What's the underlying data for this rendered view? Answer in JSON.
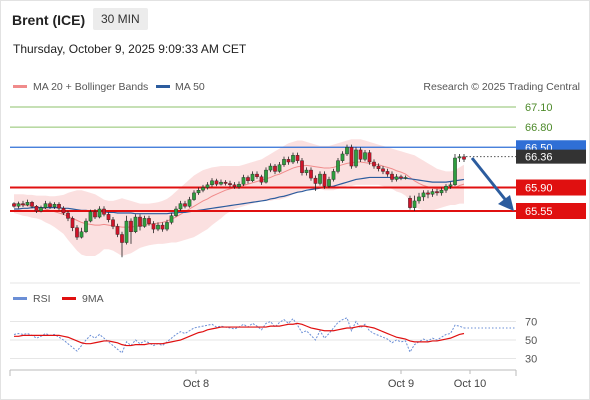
{
  "header": {
    "instrument": "Brent (ICE)",
    "timeframe": "30 MIN",
    "datetime": "Thursday, October 9, 2025 9:09:33 AM CET"
  },
  "legend": {
    "bollinger": "MA 20 + Bollinger Bands",
    "ma50": "MA 50",
    "credit": "Research © 2025 Trading Central",
    "rsi": "RSI",
    "rsi_ma": "9MA"
  },
  "colors": {
    "candle_up": "#2e9e3e",
    "candle_down": "#d0142a",
    "bollinger": "#f08b8b",
    "bollinger_band": "#f9d6d6",
    "ma50": "#2c5c9e",
    "resistance": "#8dc26b",
    "pivot": "#2f6fd6",
    "support": "#e01010",
    "current_price": "#333333",
    "rsi": "#6b8fd6",
    "rsi_ma": "#e01010"
  },
  "chart_data": [
    {
      "type": "candlestick",
      "x_ticks": [
        "Oct 8",
        "Oct 9",
        "Oct 10"
      ],
      "y_range": [
        64.7,
        67.4
      ],
      "levels": [
        {
          "value": 67.1,
          "label": "67.10",
          "kind": "resistance"
        },
        {
          "value": 66.8,
          "label": "66.80",
          "kind": "resistance"
        },
        {
          "value": 66.5,
          "label": "66.50",
          "kind": "pivot"
        },
        {
          "value": 66.36,
          "label": "66.36",
          "kind": "current_price"
        },
        {
          "value": 65.9,
          "label": "65.90",
          "kind": "support"
        },
        {
          "value": 65.55,
          "label": "65.55",
          "kind": "support"
        }
      ],
      "candles": [
        [
          65.66,
          65.62,
          65.68,
          65.6
        ],
        [
          65.62,
          65.66,
          65.69,
          65.59
        ],
        [
          65.66,
          65.64,
          65.7,
          65.61
        ],
        [
          65.64,
          65.68,
          65.72,
          65.62
        ],
        [
          65.68,
          65.62,
          65.7,
          65.59
        ],
        [
          65.62,
          65.55,
          65.64,
          65.52
        ],
        [
          65.55,
          65.6,
          65.63,
          65.53
        ],
        [
          65.6,
          65.66,
          65.7,
          65.58
        ],
        [
          65.66,
          65.61,
          65.69,
          65.58
        ],
        [
          65.61,
          65.65,
          65.68,
          65.58
        ],
        [
          65.65,
          65.59,
          65.68,
          65.56
        ],
        [
          65.59,
          65.52,
          65.62,
          65.49
        ],
        [
          65.52,
          65.44,
          65.55,
          65.4
        ],
        [
          65.44,
          65.3,
          65.47,
          65.25
        ],
        [
          65.3,
          65.16,
          65.34,
          65.12
        ],
        [
          65.16,
          65.24,
          65.3,
          65.14
        ],
        [
          65.24,
          65.4,
          65.44,
          65.22
        ],
        [
          65.4,
          65.54,
          65.57,
          65.38
        ],
        [
          65.54,
          65.46,
          65.58,
          65.43
        ],
        [
          65.46,
          65.58,
          65.62,
          65.44
        ],
        [
          65.58,
          65.5,
          65.62,
          65.47
        ],
        [
          65.5,
          65.42,
          65.53,
          65.38
        ],
        [
          65.42,
          65.32,
          65.46,
          65.28
        ],
        [
          65.32,
          65.2,
          65.36,
          65.16
        ],
        [
          65.2,
          65.08,
          65.24,
          64.86
        ],
        [
          65.08,
          65.4,
          65.48,
          65.05
        ],
        [
          65.4,
          65.24,
          65.44,
          65.06
        ],
        [
          65.24,
          65.46,
          65.5,
          65.22
        ],
        [
          65.46,
          65.32,
          65.5,
          65.26
        ],
        [
          65.32,
          65.44,
          65.48,
          65.3
        ],
        [
          65.44,
          65.36,
          65.48,
          65.33
        ],
        [
          65.36,
          65.28,
          65.4,
          65.22
        ],
        [
          65.28,
          65.34,
          65.38,
          65.25
        ],
        [
          65.34,
          65.28,
          65.38,
          65.24
        ],
        [
          65.28,
          65.38,
          65.42,
          65.25
        ],
        [
          65.38,
          65.48,
          65.52,
          65.35
        ],
        [
          65.48,
          65.58,
          65.62,
          65.46
        ],
        [
          65.58,
          65.66,
          65.7,
          65.55
        ],
        [
          65.66,
          65.62,
          65.7,
          65.59
        ],
        [
          65.62,
          65.72,
          65.76,
          65.6
        ],
        [
          65.72,
          65.82,
          65.86,
          65.7
        ],
        [
          65.82,
          65.86,
          65.9,
          65.79
        ],
        [
          65.86,
          65.9,
          65.94,
          65.83
        ],
        [
          65.9,
          65.94,
          65.98,
          65.87
        ],
        [
          65.94,
          66.0,
          66.04,
          65.91
        ],
        [
          66.0,
          65.95,
          66.03,
          65.92
        ],
        [
          65.95,
          65.98,
          66.02,
          65.93
        ],
        [
          65.98,
          65.96,
          66.01,
          65.93
        ],
        [
          65.96,
          65.94,
          66.0,
          65.91
        ],
        [
          65.94,
          65.91,
          65.98,
          65.88
        ],
        [
          65.91,
          65.95,
          65.99,
          65.88
        ],
        [
          65.95,
          66.05,
          66.09,
          65.92
        ],
        [
          66.05,
          66.0,
          66.08,
          65.96
        ],
        [
          66.0,
          66.1,
          66.14,
          65.98
        ],
        [
          66.1,
          66.06,
          66.14,
          66.03
        ],
        [
          66.06,
          65.98,
          66.09,
          65.94
        ],
        [
          65.98,
          66.16,
          66.2,
          65.96
        ],
        [
          66.16,
          66.22,
          66.26,
          66.13
        ],
        [
          66.22,
          66.14,
          66.25,
          66.1
        ],
        [
          66.14,
          66.24,
          66.28,
          66.12
        ],
        [
          66.24,
          66.32,
          66.36,
          66.21
        ],
        [
          66.32,
          66.28,
          66.36,
          66.24
        ],
        [
          66.28,
          66.38,
          66.42,
          66.25
        ],
        [
          66.38,
          66.3,
          66.42,
          66.26
        ],
        [
          66.3,
          66.12,
          66.34,
          66.08
        ],
        [
          66.12,
          66.16,
          66.2,
          66.08
        ],
        [
          66.16,
          66.04,
          66.2,
          66.0
        ],
        [
          66.04,
          65.96,
          66.08,
          65.85
        ],
        [
          65.96,
          66.1,
          66.14,
          65.93
        ],
        [
          66.1,
          65.92,
          66.14,
          65.88
        ],
        [
          65.92,
          66.02,
          66.06,
          65.89
        ],
        [
          66.02,
          66.14,
          66.18,
          65.99
        ],
        [
          66.14,
          66.3,
          66.34,
          66.11
        ],
        [
          66.3,
          66.4,
          66.44,
          66.27
        ],
        [
          66.4,
          66.5,
          66.54,
          66.37
        ],
        [
          66.5,
          66.22,
          66.54,
          66.18
        ],
        [
          66.22,
          66.46,
          66.5,
          66.19
        ],
        [
          66.46,
          66.32,
          66.5,
          66.28
        ],
        [
          66.32,
          66.42,
          66.46,
          66.29
        ],
        [
          66.42,
          66.28,
          66.46,
          66.24
        ],
        [
          66.28,
          66.22,
          66.32,
          66.18
        ],
        [
          66.22,
          66.18,
          66.26,
          66.14
        ],
        [
          66.18,
          66.14,
          66.22,
          66.1
        ],
        [
          66.14,
          66.1,
          66.18,
          66.06
        ],
        [
          66.1,
          66.02,
          66.14,
          65.98
        ],
        [
          66.02,
          66.06,
          66.1,
          65.99
        ],
        [
          66.06,
          66.04,
          66.09,
          66.01
        ],
        [
          66.04,
          66.05,
          66.08,
          66.02
        ],
        [
          65.74,
          65.6,
          65.78,
          65.57
        ],
        [
          65.6,
          65.7,
          65.78,
          65.55
        ],
        [
          65.7,
          65.76,
          65.82,
          65.66
        ],
        [
          65.76,
          65.82,
          65.86,
          65.7
        ],
        [
          65.82,
          65.8,
          65.86,
          65.74
        ],
        [
          65.8,
          65.84,
          65.88,
          65.76
        ],
        [
          65.84,
          65.82,
          65.88,
          65.78
        ],
        [
          65.82,
          65.86,
          65.9,
          65.78
        ],
        [
          65.86,
          65.92,
          65.95,
          65.82
        ],
        [
          65.92,
          65.94,
          65.98,
          65.88
        ],
        [
          65.94,
          66.34,
          66.4,
          65.92
        ],
        [
          66.34,
          66.36,
          66.4,
          66.28
        ],
        [
          66.36,
          66.32,
          66.4,
          66.28
        ]
      ],
      "ma20": [
        65.66,
        65.65,
        65.64,
        65.63,
        65.62,
        65.61,
        65.6,
        65.58,
        65.56,
        65.54,
        65.52,
        65.5,
        65.47,
        65.44,
        65.41,
        65.38,
        65.36,
        65.35,
        65.34,
        65.34,
        65.35,
        65.34,
        65.33,
        65.32,
        65.31,
        65.31,
        65.31,
        65.32,
        65.33,
        65.34,
        65.35,
        65.36,
        65.37,
        65.38,
        65.4,
        65.43,
        65.46,
        65.5,
        65.54,
        65.58,
        65.62,
        65.66,
        65.7,
        65.73,
        65.77,
        65.8,
        65.83,
        65.86,
        65.88,
        65.9,
        65.91,
        65.93,
        65.95,
        65.97,
        65.99,
        66.01,
        66.03,
        66.05,
        66.08,
        66.1,
        66.13,
        66.16,
        66.19,
        66.21,
        66.22,
        66.23,
        66.22,
        66.21,
        66.2,
        66.19,
        66.19,
        66.2,
        66.22,
        66.24,
        66.26,
        66.27,
        66.28,
        66.28,
        66.27,
        66.26,
        66.25,
        66.24,
        66.22,
        66.2,
        66.18,
        66.15,
        66.13,
        66.1,
        66.05,
        66.0,
        65.96,
        65.93,
        65.91,
        65.89,
        65.88,
        65.88,
        65.88,
        65.89,
        65.9,
        65.93,
        65.95
      ],
      "bb_upper": [
        65.8,
        65.8,
        65.8,
        65.79,
        65.79,
        65.78,
        65.78,
        65.78,
        65.77,
        65.77,
        65.78,
        65.79,
        65.82,
        65.84,
        65.86,
        65.86,
        65.84,
        65.82,
        65.8,
        65.76,
        65.72,
        65.7,
        65.7,
        65.72,
        65.74,
        65.72,
        65.7,
        65.68,
        65.66,
        65.66,
        65.66,
        65.67,
        65.68,
        65.7,
        65.73,
        65.78,
        65.84,
        65.9,
        65.96,
        66.02,
        66.08,
        66.12,
        66.16,
        66.18,
        66.2,
        66.21,
        66.22,
        66.22,
        66.22,
        66.22,
        66.22,
        66.24,
        66.26,
        66.28,
        66.3,
        66.32,
        66.36,
        66.4,
        66.44,
        66.48,
        66.52,
        66.56,
        66.58,
        66.6,
        66.6,
        66.58,
        66.56,
        66.54,
        66.52,
        66.52,
        66.52,
        66.54,
        66.56,
        66.58,
        66.6,
        66.62,
        66.62,
        66.62,
        66.6,
        66.58,
        66.56,
        66.54,
        66.52,
        66.5,
        66.48,
        66.46,
        66.44,
        66.42,
        66.4,
        66.38,
        66.34,
        66.3,
        66.26,
        66.22,
        66.18,
        66.16,
        66.14,
        66.14,
        66.16,
        66.2,
        66.24
      ],
      "bb_lower": [
        65.52,
        65.5,
        65.48,
        65.47,
        65.45,
        65.44,
        65.42,
        65.38,
        65.35,
        65.31,
        65.26,
        65.21,
        65.12,
        65.04,
        64.96,
        64.9,
        64.88,
        64.88,
        64.88,
        64.92,
        64.98,
        64.98,
        64.96,
        64.92,
        64.88,
        64.9,
        64.92,
        64.96,
        65.0,
        65.02,
        65.04,
        65.05,
        65.06,
        65.06,
        65.07,
        65.08,
        65.08,
        65.1,
        65.12,
        65.14,
        65.16,
        65.2,
        65.24,
        65.28,
        65.34,
        65.39,
        65.44,
        65.5,
        65.54,
        65.58,
        65.6,
        65.62,
        65.64,
        65.66,
        65.68,
        65.7,
        65.7,
        65.7,
        65.72,
        65.72,
        65.74,
        65.76,
        65.8,
        65.82,
        65.84,
        65.88,
        65.88,
        65.88,
        65.88,
        65.86,
        65.86,
        65.86,
        65.88,
        65.9,
        65.92,
        65.92,
        65.94,
        65.94,
        65.94,
        65.94,
        65.94,
        65.94,
        65.92,
        65.9,
        65.88,
        65.84,
        65.82,
        65.78,
        65.7,
        65.62,
        65.58,
        65.56,
        65.56,
        65.56,
        65.58,
        65.6,
        65.62,
        65.64,
        65.64,
        65.66,
        65.66
      ],
      "ma50": [
        65.58,
        65.58,
        65.59,
        65.59,
        65.6,
        65.6,
        65.6,
        65.6,
        65.6,
        65.6,
        65.6,
        65.59,
        65.59,
        65.58,
        65.57,
        65.56,
        65.56,
        65.55,
        65.55,
        65.54,
        65.54,
        65.53,
        65.53,
        65.52,
        65.52,
        65.52,
        65.52,
        65.51,
        65.51,
        65.51,
        65.51,
        65.51,
        65.51,
        65.51,
        65.51,
        65.52,
        65.52,
        65.53,
        65.53,
        65.54,
        65.55,
        65.56,
        65.57,
        65.58,
        65.59,
        65.6,
        65.61,
        65.62,
        65.63,
        65.64,
        65.65,
        65.66,
        65.67,
        65.68,
        65.69,
        65.7,
        65.71,
        65.73,
        65.74,
        65.76,
        65.77,
        65.79,
        65.81,
        65.83,
        65.84,
        65.86,
        65.87,
        65.88,
        65.89,
        65.9,
        65.91,
        65.92,
        65.94,
        65.96,
        65.98,
        66.0,
        66.02,
        66.03,
        66.04,
        66.05,
        66.05,
        66.05,
        66.05,
        66.05,
        66.05,
        66.04,
        66.04,
        66.04,
        66.03,
        66.02,
        66.01,
        66.0,
        65.99,
        65.98,
        65.98,
        65.98,
        65.98,
        65.99,
        66.0,
        66.01,
        66.02
      ]
    },
    {
      "type": "line",
      "y_ticks": [
        70,
        50,
        30
      ],
      "y_range": [
        20,
        80
      ],
      "series": [
        {
          "name": "RSI",
          "values": [
            56,
            57,
            56,
            57,
            55,
            52,
            54,
            57,
            55,
            56,
            53,
            50,
            46,
            42,
            38,
            44,
            50,
            55,
            52,
            56,
            52,
            48,
            44,
            40,
            36,
            48,
            44,
            50,
            46,
            49,
            47,
            44,
            46,
            44,
            48,
            52,
            56,
            59,
            57,
            60,
            63,
            64,
            65,
            66,
            67,
            64,
            65,
            64,
            63,
            62,
            64,
            67,
            64,
            68,
            65,
            61,
            68,
            70,
            64,
            69,
            72,
            68,
            73,
            66,
            58,
            60,
            55,
            50,
            60,
            52,
            57,
            63,
            69,
            72,
            74,
            60,
            70,
            63,
            67,
            60,
            57,
            55,
            53,
            51,
            47,
            50,
            48,
            49,
            37,
            45,
            48,
            51,
            49,
            52,
            50,
            53,
            56,
            57,
            66,
            65,
            63
          ]
        },
        {
          "name": "9MA",
          "values": [
            54,
            54,
            55,
            55,
            55,
            55,
            55,
            55,
            55,
            55,
            55,
            54,
            53,
            51,
            49,
            47,
            46,
            46,
            47,
            48,
            49,
            49,
            48,
            47,
            45,
            44,
            44,
            45,
            45,
            45,
            46,
            46,
            46,
            46,
            47,
            48,
            49,
            50,
            52,
            54,
            56,
            58,
            59,
            61,
            62,
            63,
            64,
            64,
            64,
            64,
            64,
            64,
            64,
            64,
            64,
            64,
            64,
            65,
            65,
            65,
            66,
            67,
            67,
            68,
            67,
            65,
            63,
            62,
            61,
            60,
            60,
            60,
            61,
            62,
            63,
            63,
            64,
            65,
            65,
            64,
            63,
            61,
            59,
            57,
            55,
            53,
            52,
            51,
            49,
            48,
            48,
            48,
            48,
            49,
            49,
            50,
            51,
            52,
            54,
            56,
            57
          ]
        }
      ]
    }
  ]
}
